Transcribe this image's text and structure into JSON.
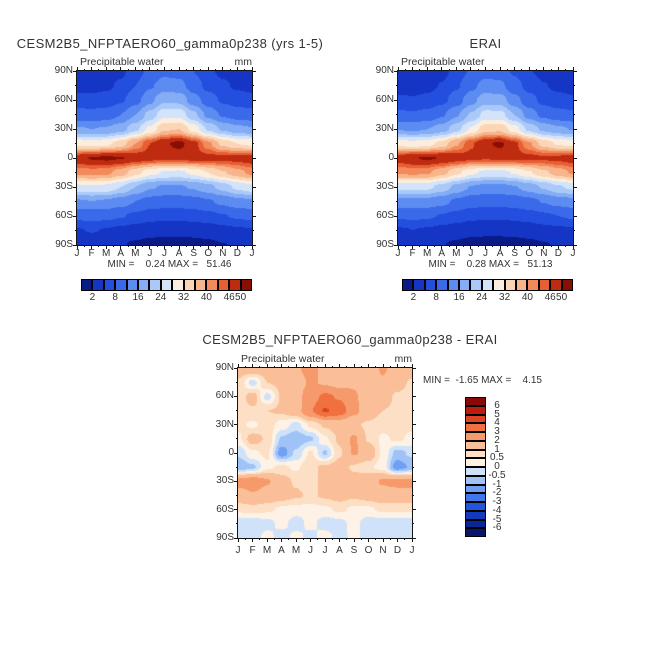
{
  "figure": {
    "background": "#ffffff",
    "text_color": "#333333"
  },
  "chart_data": [
    {
      "id": "model",
      "type": "heatmap",
      "title": "CESM2B5_NFPTAERO60_gamma0p238 (yrs 1-5)",
      "field_label": "Precipitable water",
      "units": "mm",
      "stats_text": "MIN =    0.24 MAX =   51.46",
      "min": 0.24,
      "max": 51.46,
      "x_tick_labels": [
        "J",
        "F",
        "M",
        "A",
        "M",
        "J",
        "J",
        "A",
        "S",
        "O",
        "N",
        "D",
        "J"
      ],
      "y_tick_labels": [
        "90N",
        "60N",
        "30N",
        "0",
        "30S",
        "60S",
        "90S"
      ],
      "lat_values": [
        90,
        75,
        60,
        45,
        30,
        15,
        0,
        -15,
        -30,
        -45,
        -60,
        -75,
        -90
      ],
      "levels": [
        2,
        5,
        8,
        12,
        16,
        20,
        24,
        28,
        32,
        36,
        40,
        43,
        46,
        50
      ],
      "colors": [
        "#0a1a86",
        "#1535c4",
        "#234ede",
        "#3a6ae9",
        "#5c8cf1",
        "#84adf5",
        "#abc9f8",
        "#d3e3fa",
        "#fceede",
        "#fbd6b6",
        "#f8b48a",
        "#f28a5c",
        "#e75f33",
        "#bf2b10",
        "#8a0f03"
      ],
      "colorbar": {
        "orientation": "horizontal",
        "tick_labels": [
          "2",
          "8",
          "16",
          "24",
          "32",
          "40",
          "46",
          "50"
        ],
        "tick_boundary_indices": [
          1,
          3,
          5,
          7,
          9,
          11,
          13,
          14
        ]
      },
      "values": [
        [
          3.5,
          3.5,
          3.8,
          4.5,
          6.5,
          9,
          11,
          10.5,
          8,
          5.5,
          4.5,
          3.8,
          3.5
        ],
        [
          4.2,
          4.2,
          4.5,
          5.5,
          8,
          11.5,
          14,
          13.5,
          10,
          7,
          5.5,
          4.6,
          4.2
        ],
        [
          6,
          5.8,
          6.2,
          7.5,
          10.5,
          15,
          19.5,
          19,
          14,
          10,
          7.5,
          6.5,
          6
        ],
        [
          9.5,
          9.3,
          9.8,
          12,
          16,
          21.5,
          27,
          27,
          21,
          15,
          11.5,
          10,
          9.5
        ],
        [
          16.5,
          16,
          16.5,
          18.5,
          23,
          29,
          35.5,
          36,
          30.5,
          23.5,
          19.5,
          17.5,
          16.5
        ],
        [
          31,
          30,
          31,
          34,
          40,
          46,
          49.5,
          51.2,
          47.5,
          41,
          35,
          32,
          31
        ],
        [
          48.5,
          50.3,
          50.8,
          50.2,
          48.8,
          47.5,
          47,
          47.3,
          47.6,
          47.4,
          47.2,
          47.6,
          48.5
        ],
        [
          41,
          41.5,
          41,
          38,
          33.5,
          29.5,
          27.5,
          27,
          29,
          32,
          35.5,
          38.5,
          41
        ],
        [
          27,
          27.5,
          27,
          24,
          20,
          16.5,
          15.5,
          15.5,
          16.5,
          18.5,
          21.5,
          25,
          27
        ],
        [
          15.5,
          16,
          15.5,
          14,
          12,
          10.5,
          10,
          10,
          10.5,
          11.5,
          13,
          14.5,
          15.5
        ],
        [
          9,
          9.3,
          9,
          8.3,
          7.2,
          6.2,
          5.8,
          5.8,
          6.2,
          6.8,
          7.8,
          8.5,
          9
        ],
        [
          4.8,
          5.2,
          4.8,
          4.2,
          3.6,
          3.1,
          3,
          3,
          3.1,
          3.4,
          4,
          4.5,
          4.8
        ],
        [
          2.6,
          2.9,
          2.7,
          2.2,
          1.6,
          1.1,
          0.8,
          0.8,
          1,
          1.4,
          1.9,
          2.4,
          2.6
        ]
      ]
    },
    {
      "id": "erai",
      "type": "heatmap",
      "title": "ERAI",
      "field_label": "Precipitable water",
      "units": "",
      "stats_text": "MIN =    0.28 MAX =   51.13",
      "min": 0.28,
      "max": 51.13,
      "x_tick_labels": [
        "J",
        "F",
        "M",
        "A",
        "M",
        "J",
        "J",
        "A",
        "S",
        "O",
        "N",
        "D",
        "J"
      ],
      "y_tick_labels": [
        "90N",
        "60N",
        "30N",
        "0",
        "30S",
        "60S",
        "90S"
      ],
      "lat_values": [
        90,
        75,
        60,
        45,
        30,
        15,
        0,
        -15,
        -30,
        -45,
        -60,
        -75,
        -90
      ],
      "levels": [
        2,
        5,
        8,
        12,
        16,
        20,
        24,
        28,
        32,
        36,
        40,
        43,
        46,
        50
      ],
      "colors": [
        "#0a1a86",
        "#1535c4",
        "#234ede",
        "#3a6ae9",
        "#5c8cf1",
        "#84adf5",
        "#abc9f8",
        "#d3e3fa",
        "#fceede",
        "#fbd6b6",
        "#f8b48a",
        "#f28a5c",
        "#e75f33",
        "#bf2b10",
        "#8a0f03"
      ],
      "colorbar": {
        "orientation": "horizontal",
        "tick_labels": [
          "2",
          "8",
          "16",
          "24",
          "32",
          "40",
          "46",
          "50"
        ],
        "tick_boundary_indices": [
          1,
          3,
          5,
          7,
          9,
          11,
          13,
          14
        ]
      },
      "values": [
        [
          3.2,
          3.2,
          3.5,
          4.2,
          6,
          8.5,
          10.5,
          10,
          7.5,
          5.2,
          4.2,
          3.5,
          3.2
        ],
        [
          4,
          4,
          4.2,
          5.2,
          7.5,
          11,
          13.5,
          13,
          9.5,
          6.8,
          5.2,
          4.4,
          4
        ],
        [
          5.5,
          5.3,
          5.8,
          7,
          10,
          14.5,
          18.5,
          18,
          13.5,
          9.5,
          7,
          6,
          5.5
        ],
        [
          8.8,
          8.6,
          9.2,
          11.5,
          15.5,
          20.5,
          25.5,
          25.5,
          20,
          14.2,
          10.8,
          9.4,
          8.8
        ],
        [
          15.8,
          15.4,
          16,
          18,
          22.5,
          28.5,
          34.5,
          35,
          29.8,
          23,
          19,
          17,
          15.8
        ],
        [
          30.5,
          29.5,
          30.5,
          33.5,
          39.5,
          45.5,
          49.3,
          50.8,
          47,
          40.5,
          34.5,
          31.5,
          30.5
        ],
        [
          48,
          49.8,
          50.5,
          49.8,
          48.2,
          47,
          46.5,
          47,
          47.3,
          47.2,
          46.8,
          47.2,
          48
        ],
        [
          40.5,
          41,
          40.5,
          37.5,
          33,
          29,
          27,
          26.5,
          28.5,
          31.5,
          35,
          38,
          40.5
        ],
        [
          25,
          25.5,
          25,
          22.5,
          18.8,
          15.8,
          14.8,
          14.8,
          15.8,
          17.8,
          20.5,
          23.5,
          25
        ],
        [
          14.5,
          15,
          14.5,
          13.2,
          11.2,
          9.8,
          9.3,
          9.3,
          9.8,
          10.8,
          12.2,
          13.6,
          14.5
        ],
        [
          8.5,
          8.8,
          8.5,
          7.8,
          6.8,
          5.8,
          5.5,
          5.5,
          5.8,
          6.4,
          7.4,
          8,
          8.5
        ],
        [
          4.6,
          5,
          4.6,
          4,
          3.4,
          3,
          2.9,
          2.9,
          3,
          3.3,
          3.8,
          4.3,
          4.6
        ],
        [
          2.5,
          2.8,
          2.6,
          2.1,
          1.5,
          1,
          0.7,
          0.7,
          0.9,
          1.3,
          1.8,
          2.3,
          2.5
        ]
      ]
    },
    {
      "id": "diff",
      "type": "heatmap",
      "title": "CESM2B5_NFPTAERO60_gamma0p238 - ERAI",
      "field_label": "Precipitable water",
      "units": "mm",
      "stats_text": "MIN =  -1.65 MAX =    4.15",
      "min": -1.65,
      "max": 4.15,
      "x_tick_labels": [
        "J",
        "F",
        "M",
        "A",
        "M",
        "J",
        "J",
        "A",
        "S",
        "O",
        "N",
        "D",
        "J"
      ],
      "y_tick_labels": [
        "90N",
        "60N",
        "30N",
        "0",
        "30S",
        "60S",
        "90S"
      ],
      "lat_values": [
        90,
        75,
        60,
        45,
        30,
        15,
        0,
        -15,
        -30,
        -45,
        -60,
        -75,
        -90
      ],
      "levels": [
        -6,
        -5,
        -4,
        -3,
        -2,
        -1,
        -0.5,
        0,
        0.5,
        1,
        2,
        3,
        4,
        5,
        6
      ],
      "colors": [
        "#081670",
        "#0b2696",
        "#123abc",
        "#2156dc",
        "#3f78ec",
        "#6fa0f3",
        "#9fc2f7",
        "#cfe2fa",
        "#fdf2e5",
        "#fcdfc4",
        "#fabf98",
        "#f79a6b",
        "#f0703f",
        "#df4323",
        "#bc1d0d",
        "#8c0a06"
      ],
      "colorbar": {
        "orientation": "vertical",
        "tick_labels": [
          "6",
          "5",
          "4",
          "3",
          "2",
          "1",
          "0.5",
          "0",
          "-0.5",
          "-1",
          "-2",
          "-3",
          "-4",
          "-5",
          "-6"
        ]
      },
      "values": [
        [
          1.4,
          1.6,
          1.4,
          1.6,
          1.9,
          2.3,
          1.7,
          1.4,
          1.7,
          1.4,
          2.1,
          1.6,
          1.4
        ],
        [
          0.9,
          -0.2,
          1,
          1.2,
          1.6,
          2.1,
          1.9,
          1.6,
          1.9,
          1.6,
          1.9,
          1.3,
          0.9
        ],
        [
          0.7,
          1.3,
          -0.2,
          1.1,
          1.6,
          2.6,
          3.2,
          2.9,
          2.1,
          1.6,
          1.3,
          0.9,
          0.7
        ],
        [
          0.8,
          0.9,
          1,
          1.1,
          1.6,
          2.9,
          4.1,
          3.6,
          2.3,
          1.4,
          1,
          0.9,
          0.8
        ],
        [
          0.6,
          0.4,
          0.7,
          0.3,
          -0.2,
          0.6,
          1.1,
          1.3,
          1.1,
          0.9,
          0.7,
          0.6,
          0.6
        ],
        [
          0.4,
          1.3,
          0.9,
          -0.6,
          -0.9,
          -0.6,
          0.4,
          1.1,
          2.2,
          0.9,
          0.4,
          0.6,
          0.4
        ],
        [
          -0.4,
          0.4,
          0.6,
          -1.3,
          -0.4,
          0.6,
          -0.6,
          0.9,
          2.1,
          1.6,
          0.4,
          -0.7,
          -0.4
        ],
        [
          -0.9,
          -0.6,
          0.4,
          0.6,
          0.4,
          0.9,
          1.1,
          1.3,
          0.9,
          0.6,
          0.3,
          -1.3,
          -0.9
        ],
        [
          2.3,
          2.6,
          2.1,
          1.3,
          0.9,
          0.6,
          1.3,
          1.1,
          1.3,
          1.6,
          2.1,
          2.3,
          2.3
        ],
        [
          1.6,
          1.9,
          1.6,
          1.3,
          1.1,
          0.9,
          1.1,
          1.3,
          1.1,
          1.3,
          1.6,
          1.6,
          1.6
        ],
        [
          0.6,
          0.7,
          0.6,
          0.4,
          0.3,
          0.3,
          0.4,
          0.6,
          0.4,
          0.4,
          0.6,
          0.6,
          0.6
        ],
        [
          -0.3,
          -0.3,
          -0.2,
          0.2,
          -0.3,
          0.2,
          -0.3,
          -0.2,
          0.2,
          -0.3,
          -0.3,
          -0.3,
          -0.3
        ],
        [
          -0.2,
          -0.3,
          0.2,
          -0.3,
          0.2,
          -0.2,
          0.3,
          -0.3,
          0.2,
          -0.3,
          -0.2,
          -0.3,
          -0.2
        ]
      ]
    }
  ]
}
